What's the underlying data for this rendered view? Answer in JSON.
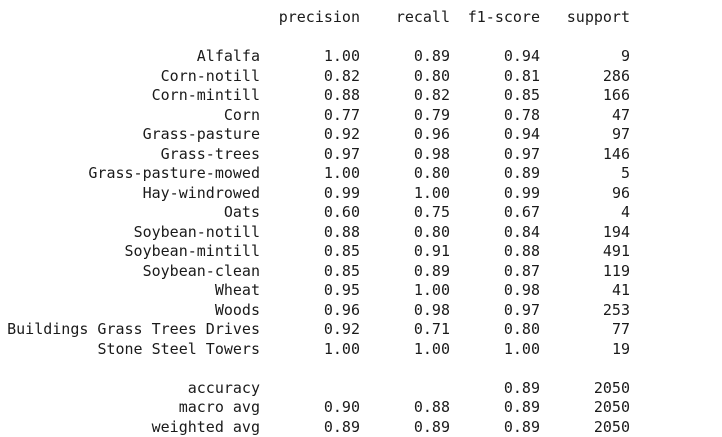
{
  "headers": {
    "precision": "precision",
    "recall": "recall",
    "f1": "f1-score",
    "support": "support"
  },
  "rows": [
    {
      "label": "Alfalfa",
      "precision": "1.00",
      "recall": "0.89",
      "f1": "0.94",
      "support": "9"
    },
    {
      "label": "Corn-notill",
      "precision": "0.82",
      "recall": "0.80",
      "f1": "0.81",
      "support": "286"
    },
    {
      "label": "Corn-mintill",
      "precision": "0.88",
      "recall": "0.82",
      "f1": "0.85",
      "support": "166"
    },
    {
      "label": "Corn",
      "precision": "0.77",
      "recall": "0.79",
      "f1": "0.78",
      "support": "47"
    },
    {
      "label": "Grass-pasture",
      "precision": "0.92",
      "recall": "0.96",
      "f1": "0.94",
      "support": "97"
    },
    {
      "label": "Grass-trees",
      "precision": "0.97",
      "recall": "0.98",
      "f1": "0.97",
      "support": "146"
    },
    {
      "label": "Grass-pasture-mowed",
      "precision": "1.00",
      "recall": "0.80",
      "f1": "0.89",
      "support": "5"
    },
    {
      "label": "Hay-windrowed",
      "precision": "0.99",
      "recall": "1.00",
      "f1": "0.99",
      "support": "96"
    },
    {
      "label": "Oats",
      "precision": "0.60",
      "recall": "0.75",
      "f1": "0.67",
      "support": "4"
    },
    {
      "label": "Soybean-notill",
      "precision": "0.88",
      "recall": "0.80",
      "f1": "0.84",
      "support": "194"
    },
    {
      "label": "Soybean-mintill",
      "precision": "0.85",
      "recall": "0.91",
      "f1": "0.88",
      "support": "491"
    },
    {
      "label": "Soybean-clean",
      "precision": "0.85",
      "recall": "0.89",
      "f1": "0.87",
      "support": "119"
    },
    {
      "label": "Wheat",
      "precision": "0.95",
      "recall": "1.00",
      "f1": "0.98",
      "support": "41"
    },
    {
      "label": "Woods",
      "precision": "0.96",
      "recall": "0.98",
      "f1": "0.97",
      "support": "253"
    },
    {
      "label": "Buildings Grass Trees Drives",
      "precision": "0.92",
      "recall": "0.71",
      "f1": "0.80",
      "support": "77"
    },
    {
      "label": "Stone Steel Towers",
      "precision": "1.00",
      "recall": "1.00",
      "f1": "1.00",
      "support": "19"
    }
  ],
  "summary": [
    {
      "label": "accuracy",
      "precision": "",
      "recall": "",
      "f1": "0.89",
      "support": "2050"
    },
    {
      "label": "macro avg",
      "precision": "0.90",
      "recall": "0.88",
      "f1": "0.89",
      "support": "2050"
    },
    {
      "label": "weighted avg",
      "precision": "0.89",
      "recall": "0.89",
      "f1": "0.89",
      "support": "2050"
    }
  ]
}
